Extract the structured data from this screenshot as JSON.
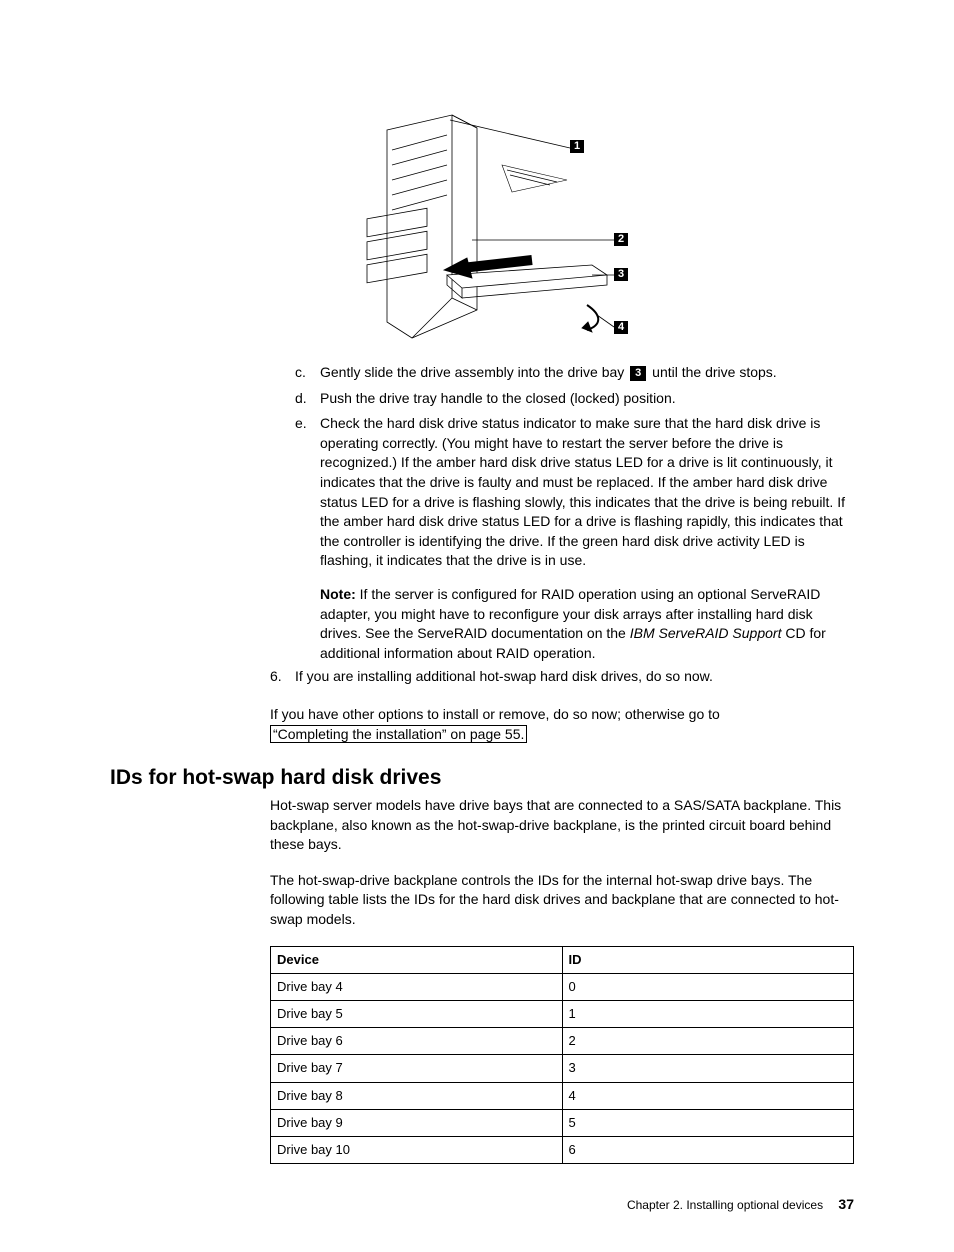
{
  "diagram": {
    "callouts": {
      "c1": "1",
      "c2": "2",
      "c3": "3",
      "c4": "4"
    }
  },
  "steps_lettered": {
    "c": {
      "letter": "c.",
      "text_before": "Gently slide the drive assembly into the drive bay ",
      "callout_ref": "3",
      "text_after": " until the drive stops."
    },
    "d": {
      "letter": "d.",
      "text": "Push the drive tray handle to the closed (locked) position."
    },
    "e": {
      "letter": "e.",
      "text": "Check the hard disk drive status indicator to make sure that the hard disk drive is operating correctly. (You might have to restart the server before the drive is recognized.) If the amber hard disk drive status LED for a drive is lit continuously, it indicates that the drive is faulty and must be replaced. If the amber hard disk drive status LED for a drive is flashing slowly, this indicates that the drive is being rebuilt. If the amber hard disk drive status LED for a drive is flashing rapidly, this indicates that the controller is identifying the drive. If the green hard disk drive activity LED is flashing, it indicates that the drive is in use."
    }
  },
  "note": {
    "label": "Note:",
    "text_before": " If the server is configured for RAID operation using an optional ServeRAID adapter, you might have to reconfigure your disk arrays after installing hard disk drives. See the ServeRAID documentation on the ",
    "italic_text": "IBM ServeRAID Support",
    "text_after": " CD for additional information about RAID operation."
  },
  "step6": {
    "number": "6.",
    "text": "If you are installing additional hot-swap hard disk drives, do so now."
  },
  "closing": {
    "text_before": "If you have other options to install or remove, do so now; otherwise go to ",
    "link_text": "“Completing the installation” on page 55."
  },
  "section": {
    "heading": "IDs for hot-swap hard disk drives",
    "para1": "Hot-swap server models have drive bays that are connected to a SAS/SATA backplane. This backplane, also known as the hot-swap-drive backplane, is the printed circuit board behind these bays.",
    "para2": "The hot-swap-drive backplane controls the IDs for the internal hot-swap drive bays. The following table lists the IDs for the hard disk drives and backplane that are connected to hot-swap models."
  },
  "table": {
    "columns": [
      "Device",
      "ID"
    ],
    "rows": [
      [
        "Drive bay 4",
        "0"
      ],
      [
        "Drive bay 5",
        "1"
      ],
      [
        "Drive bay 6",
        "2"
      ],
      [
        "Drive bay 7",
        "3"
      ],
      [
        "Drive bay 8",
        "4"
      ],
      [
        "Drive bay 9",
        "5"
      ],
      [
        "Drive bay 10",
        "6"
      ]
    ],
    "col1_width": "50%",
    "col2_width": "50%"
  },
  "footer": {
    "chapter": "Chapter 2. Installing optional devices",
    "page_number": "37"
  }
}
